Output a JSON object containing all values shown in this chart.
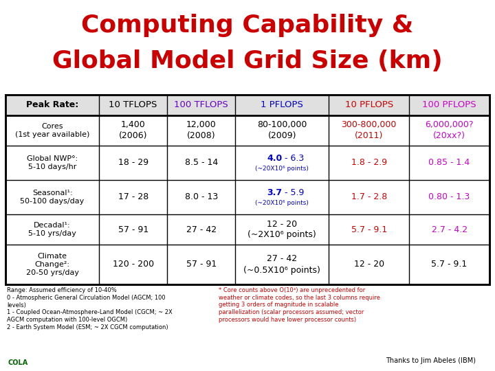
{
  "title_line1": "Computing Capability &",
  "title_line2": "Global Model Grid Size (km)",
  "title_color": "#cc0000",
  "bg_color": "#ffffff",
  "header_row": [
    "Peak Rate:",
    "10 TFLOPS",
    "100 TFLOPS",
    "1 PFLOPS",
    "10 PFLOPS",
    "100 PFLOPS"
  ],
  "header_colors": [
    "#000000",
    "#000000",
    "#6600cc",
    "#0000cc",
    "#cc0000",
    "#cc00cc"
  ],
  "header_bold": [
    true,
    false,
    false,
    false,
    false,
    false
  ],
  "rows": [
    {
      "label": "Cores\n(1st year available)",
      "values": [
        "1,400\n(2006)",
        "12,000\n(2008)",
        "80-100,000\n(2009)",
        "300-800,000\n(2011)",
        "6,000,000?\n(20xx?)"
      ],
      "value_colors": [
        "#000000",
        "#000000",
        "#000000",
        "#cc0000",
        "#cc00cc"
      ],
      "bold_prefix": [
        "",
        "",
        "",
        "",
        ""
      ]
    },
    {
      "label": "Global NWP°:\n5-10 days/hr",
      "values": [
        "18 - 29",
        "8.5 - 14",
        "4.0 - 6.3\n(~20X10⁶ points)",
        "1.8 - 2.9",
        "0.85 - 1.4"
      ],
      "value_colors": [
        "#000000",
        "#000000",
        "#0000cc",
        "#cc0000",
        "#cc00cc"
      ],
      "bold_prefix": [
        "",
        "",
        "4.0",
        "",
        ""
      ]
    },
    {
      "label": "Seasonal¹:\n50-100 days/day",
      "values": [
        "17 - 28",
        "8.0 - 13",
        "3.7 - 5.9\n(~20X10⁶ points)",
        "1.7 - 2.8",
        "0.80 - 1.3"
      ],
      "value_colors": [
        "#000000",
        "#000000",
        "#0000cc",
        "#cc0000",
        "#cc00cc"
      ],
      "bold_prefix": [
        "",
        "",
        "3.7",
        "",
        ""
      ]
    },
    {
      "label": "Decadal¹:\n5-10 yrs/day",
      "values": [
        "57 - 91",
        "27 - 42",
        "12 - 20\n(~2X10⁶ points)",
        "5.7 - 9.1",
        "2.7 - 4.2"
      ],
      "value_colors": [
        "#000000",
        "#000000",
        "#000000",
        "#cc0000",
        "#cc00cc"
      ],
      "bold_prefix": [
        "",
        "",
        "",
        "",
        ""
      ]
    },
    {
      "label": "Climate\nChange²:\n20-50 yrs/day",
      "values": [
        "120 - 200",
        "57 - 91",
        "27 - 42\n(~0.5X10⁶ points)",
        "12 - 20",
        "5.7 - 9.1"
      ],
      "value_colors": [
        "#000000",
        "#000000",
        "#000000",
        "#000000",
        "#000000"
      ],
      "bold_prefix": [
        "",
        "",
        "",
        "",
        ""
      ]
    }
  ],
  "footer_left_black": [
    "Range: Assumed efficiency of 10-40%",
    "0 - Atmospheric General Circulation Model (AGCM; 100",
    "levels)",
    "1 - Coupled Ocean-Atmosphere-Land Model (CGCM; ~ 2X",
    "AGCM computation with 100-level OGCM)",
    "2 - Earth System Model (ESM; ~ 2X CGCM computation)"
  ],
  "footer_right_red": [
    "* Core counts above O(10⁴) are unprecedented for",
    "weather or climate codes, so the last 3 columns require",
    "getting 3 orders of magnitude in scalable",
    "parallelization (scalar processors assumed; vector",
    "processors would have lower processor counts)"
  ],
  "footer_thanks": "Thanks to Jim Abeles (IBM)",
  "cola_text": "COLA"
}
